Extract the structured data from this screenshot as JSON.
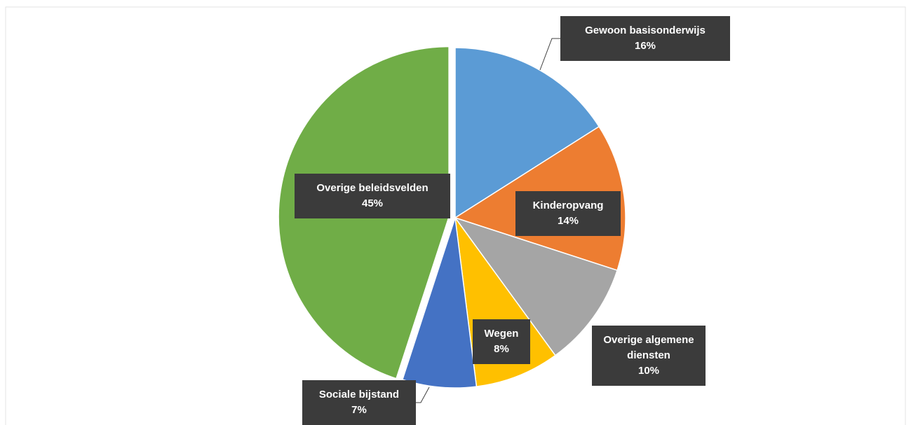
{
  "chart_data": {
    "type": "pie",
    "categories": [
      "Gewoon basisonderwijs",
      "Kinderopvang",
      "Overige algemene diensten",
      "Wegen",
      "Sociale bijstand",
      "Overige beleidsvelden"
    ],
    "values": [
      16,
      14,
      10,
      8,
      7,
      45
    ],
    "value_labels": [
      "16%",
      "14%",
      "10%",
      "8%",
      "7%",
      "45%"
    ],
    "colors": [
      "#5b9bd5",
      "#ed7d31",
      "#a5a5a5",
      "#ffc000",
      "#4472c4",
      "#70ad47"
    ]
  }
}
